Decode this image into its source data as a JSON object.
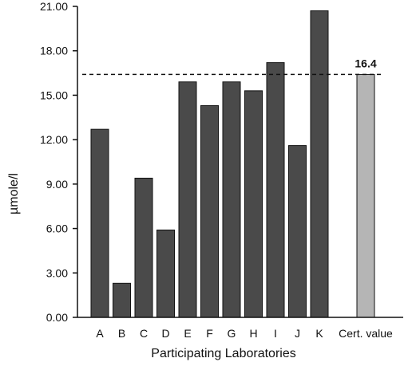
{
  "chart_data": {
    "type": "bar",
    "title": "",
    "xlabel": "Participating Laboratories",
    "ylabel": "µmole/l",
    "ylim": [
      0,
      21
    ],
    "yticks": [
      "0.00",
      "3.00",
      "6.00",
      "9.00",
      "12.00",
      "15.00",
      "18.00",
      "21.00"
    ],
    "grid": false,
    "legend": "none",
    "categories": [
      "A",
      "B",
      "C",
      "D",
      "E",
      "F",
      "G",
      "H",
      "I",
      "J",
      "K",
      "Cert. value"
    ],
    "values": [
      12.7,
      2.3,
      9.4,
      5.9,
      15.9,
      14.3,
      15.9,
      15.3,
      17.2,
      11.6,
      20.7,
      16.4
    ],
    "reference_line": {
      "value": 16.4,
      "style": "dashed",
      "label": "16.4"
    },
    "colors": {
      "bar": "#4a4a4a",
      "certified_bar": "#b5b5b5",
      "bar_outline": "#111111",
      "axis": "#111111"
    }
  }
}
